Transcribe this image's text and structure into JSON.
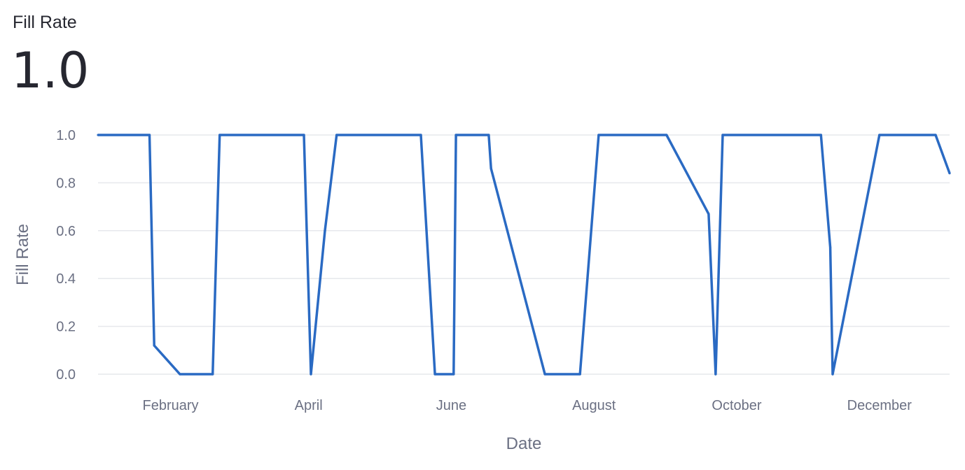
{
  "metric": {
    "label": "Fill Rate",
    "value": "1.0"
  },
  "chart_data": {
    "type": "line",
    "title": "",
    "xlabel": "Date",
    "ylabel": "Fill Rate",
    "ylim": [
      0,
      1
    ],
    "yticks": [
      "0.0",
      "0.2",
      "0.4",
      "0.6",
      "0.8",
      "1.0"
    ],
    "xlim": [
      "2023-01-01",
      "2023-12-31"
    ],
    "xticks": [
      {
        "date": "2023-02-01",
        "label": "February"
      },
      {
        "date": "2023-04-01",
        "label": "April"
      },
      {
        "date": "2023-06-01",
        "label": "June"
      },
      {
        "date": "2023-08-01",
        "label": "August"
      },
      {
        "date": "2023-10-01",
        "label": "October"
      },
      {
        "date": "2023-12-01",
        "label": "December"
      }
    ],
    "grid": true,
    "color": "#2a6ac3",
    "series": [
      {
        "name": "",
        "points": [
          {
            "x": "2023-01-01",
            "y": 1.0
          },
          {
            "x": "2023-01-23",
            "y": 1.0
          },
          {
            "x": "2023-01-25",
            "y": 0.12
          },
          {
            "x": "2023-02-05",
            "y": 0.0
          },
          {
            "x": "2023-02-19",
            "y": 0.0
          },
          {
            "x": "2023-02-22",
            "y": 1.0
          },
          {
            "x": "2023-03-30",
            "y": 1.0
          },
          {
            "x": "2023-04-02",
            "y": 0.0
          },
          {
            "x": "2023-04-08",
            "y": 0.6
          },
          {
            "x": "2023-04-13",
            "y": 1.0
          },
          {
            "x": "2023-05-19",
            "y": 1.0
          },
          {
            "x": "2023-05-25",
            "y": 0.0
          },
          {
            "x": "2023-06-02",
            "y": 0.0
          },
          {
            "x": "2023-06-03",
            "y": 1.0
          },
          {
            "x": "2023-06-17",
            "y": 1.0
          },
          {
            "x": "2023-06-18",
            "y": 0.86
          },
          {
            "x": "2023-07-11",
            "y": 0.0
          },
          {
            "x": "2023-07-26",
            "y": 0.0
          },
          {
            "x": "2023-08-03",
            "y": 1.0
          },
          {
            "x": "2023-09-01",
            "y": 1.0
          },
          {
            "x": "2023-09-19",
            "y": 0.67
          },
          {
            "x": "2023-09-22",
            "y": 0.0
          },
          {
            "x": "2023-09-25",
            "y": 1.0
          },
          {
            "x": "2023-11-06",
            "y": 1.0
          },
          {
            "x": "2023-11-10",
            "y": 0.53
          },
          {
            "x": "2023-11-11",
            "y": 0.0
          },
          {
            "x": "2023-12-01",
            "y": 1.0
          },
          {
            "x": "2023-12-25",
            "y": 1.0
          },
          {
            "x": "2023-12-31",
            "y": 0.84
          }
        ]
      }
    ]
  }
}
